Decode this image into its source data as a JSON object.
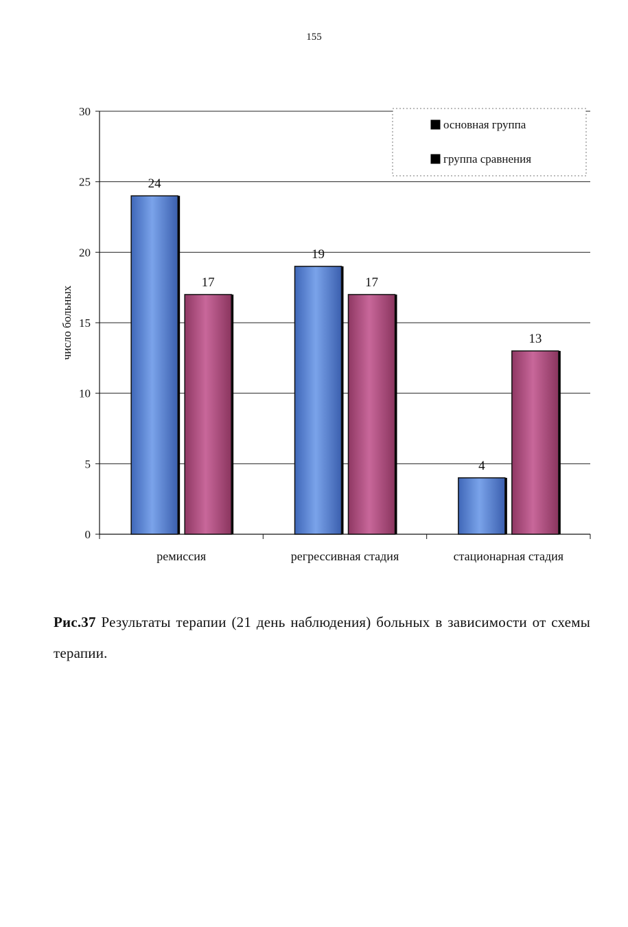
{
  "page": {
    "number": "155",
    "caption_lead": "Рис.37",
    "caption_text": " Результаты терапии (21 день наблюдения) больных в зависимости от схемы терапии."
  },
  "chart_data": {
    "type": "bar",
    "title": "",
    "xlabel": "",
    "ylabel": "число больных",
    "ylim": [
      0,
      30
    ],
    "yticks": [
      0,
      5,
      10,
      15,
      20,
      25,
      30
    ],
    "categories": [
      "ремиссия",
      "регрессивная стадия",
      "стационарная стадия"
    ],
    "series": [
      {
        "name": "основная группа",
        "values": [
          24,
          19,
          4
        ],
        "color": "#5b86d6"
      },
      {
        "name": "группа сравнения",
        "values": [
          17,
          17,
          13
        ],
        "color": "#b4507e"
      }
    ],
    "data_labels": true,
    "grid": true,
    "legend_position": "top-right"
  }
}
